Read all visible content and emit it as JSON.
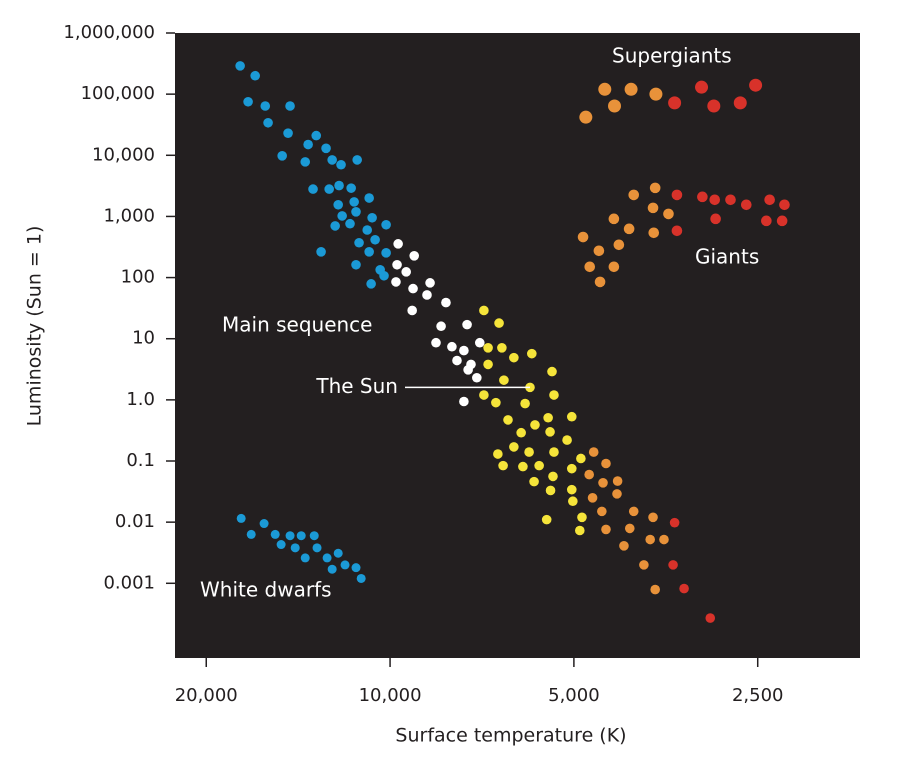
{
  "chart_data": {
    "type": "scatter",
    "x_label": "Surface temperature (K)",
    "y_label": "Luminosity (Sun = 1)",
    "x_log": true,
    "y_log": true,
    "x_reversed": true,
    "background": "#231f20",
    "xlim": [
      22500,
      1700
    ],
    "ylim": [
      6e-05,
      1000000
    ],
    "xticks": [
      {
        "value": 20000,
        "label": "20,000"
      },
      {
        "value": 10000,
        "label": "10,000"
      },
      {
        "value": 5000,
        "label": "5,000"
      },
      {
        "value": 2500,
        "label": "2,500"
      }
    ],
    "yticks": [
      {
        "value": 1000000,
        "label": "1,000,000"
      },
      {
        "value": 100000,
        "label": "100,000"
      },
      {
        "value": 10000,
        "label": "10,000"
      },
      {
        "value": 1000,
        "label": "1,000"
      },
      100,
      10,
      {
        "value": 1,
        "label": "1.0"
      },
      0.1,
      0.01,
      0.001
    ],
    "series": [
      {
        "name": "White dwarfs",
        "x": [
          17530,
          16880,
          16080,
          15420,
          15080,
          14580,
          13980,
          14300,
          13770,
          13310,
          13170,
          12680,
          12160,
          12440,
          11850,
          11370,
          11150
        ],
        "values": [
          0.0115,
          0.0063,
          0.0095,
          0.0063,
          0.0043,
          0.006,
          0.006,
          0.0038,
          0.0026,
          0.006,
          0.0038,
          0.0026,
          0.0031,
          0.0017,
          0.002,
          0.0018,
          0.0012
        ],
        "colors": [
          "#1b9ad6",
          "#1b9ad6",
          "#1b9ad6",
          "#1b9ad6",
          "#1b9ad6",
          "#1b9ad6",
          "#1b9ad6",
          "#1b9ad6",
          "#1b9ad6",
          "#1b9ad6",
          "#1b9ad6",
          "#1b9ad6",
          "#1b9ad6",
          "#1b9ad6",
          "#1b9ad6",
          "#1b9ad6",
          "#1b9ad6"
        ]
      },
      {
        "name": "Main sequence",
        "x": [
          17600,
          16630,
          17080,
          16010,
          14580,
          15840,
          14690,
          13210,
          13620,
          12730,
          15020,
          13770,
          12440,
          12030,
          11320,
          13370,
          12580,
          12120,
          11580,
          12160,
          11450,
          10820,
          11980,
          11370,
          10700,
          12300,
          11630,
          10150,
          10900,
          10580,
          11240,
          10150,
          10820,
          12970,
          11370,
          10380,
          10230,
          10740,
          9700,
          9130,
          9740,
          9410,
          9780,
          8600,
          9170,
          8700,
          8100,
          9200,
          8250,
          7480,
          8410,
          7920,
          7570,
          7770,
          7370,
          7450,
          7210,
          7570,
          7130,
          7020,
          6630,
          6910,
          6560,
          6910,
          6270,
          5860,
          6510,
          7020,
          5900,
          5430,
          6710,
          6410,
          6010,
          5390,
          5790,
          5510,
          5040,
          5470,
          5130,
          6100,
          6660,
          6270,
          5920,
          5390,
          5700,
          5040,
          4870,
          6530,
          6060,
          5810,
          5410,
          5040,
          5460,
          5020,
          4850,
          5540,
          4890,
          4640,
          4430,
          4720,
          4480,
          4240,
          4660,
          4250,
          4500,
          3990,
          4430,
          4050,
          3710,
          4140,
          3750,
          3560,
          3840,
          3680,
          3420,
          3440,
          3300,
          2990
        ],
        "values": [
          290000,
          200000,
          75000,
          64000,
          64000,
          34000,
          23000,
          21000,
          15000,
          13000,
          9800,
          7800,
          8400,
          7000,
          8400,
          2800,
          2800,
          3200,
          2900,
          1550,
          1730,
          2000,
          1020,
          1190,
          950,
          700,
          760,
          730,
          600,
          415,
          371,
          254,
          264,
          264,
          162,
          134,
          107,
          79,
          356,
          227,
          162,
          124,
          85,
          82,
          66,
          52,
          39,
          29,
          16,
          17,
          8.6,
          7.4,
          6.4,
          4.4,
          3.8,
          3.1,
          2.3,
          0.94,
          8.6,
          29,
          18,
          7.1,
          7.1,
          3.8,
          4.9,
          5.7,
          2.1,
          1.2,
          1.6,
          2.9,
          0.9,
          0.47,
          0.87,
          1.2,
          0.39,
          0.51,
          0.53,
          0.3,
          0.22,
          0.29,
          0.13,
          0.17,
          0.14,
          0.14,
          0.084,
          0.075,
          0.11,
          0.084,
          0.081,
          0.046,
          0.056,
          0.034,
          0.033,
          0.022,
          0.012,
          0.011,
          0.0073,
          0.14,
          0.091,
          0.06,
          0.044,
          0.047,
          0.025,
          0.029,
          0.015,
          0.015,
          0.0076,
          0.0079,
          0.012,
          0.0041,
          0.0052,
          0.0052,
          0.002,
          0.00079,
          0.0098,
          0.002,
          0.00082,
          0.00027
        ],
        "colors": [
          "#1b9ad6",
          "#1b9ad6",
          "#1b9ad6",
          "#1b9ad6",
          "#1b9ad6",
          "#1b9ad6",
          "#1b9ad6",
          "#1b9ad6",
          "#1b9ad6",
          "#1b9ad6",
          "#1b9ad6",
          "#1b9ad6",
          "#1b9ad6",
          "#1b9ad6",
          "#1b9ad6",
          "#1b9ad6",
          "#1b9ad6",
          "#1b9ad6",
          "#1b9ad6",
          "#1b9ad6",
          "#1b9ad6",
          "#1b9ad6",
          "#1b9ad6",
          "#1b9ad6",
          "#1b9ad6",
          "#1b9ad6",
          "#1b9ad6",
          "#1b9ad6",
          "#1b9ad6",
          "#1b9ad6",
          "#1b9ad6",
          "#1b9ad6",
          "#1b9ad6",
          "#1b9ad6",
          "#1b9ad6",
          "#1b9ad6",
          "#1b9ad6",
          "#1b9ad6",
          "#ffffff",
          "#ffffff",
          "#ffffff",
          "#ffffff",
          "#ffffff",
          "#ffffff",
          "#ffffff",
          "#ffffff",
          "#ffffff",
          "#ffffff",
          "#ffffff",
          "#ffffff",
          "#ffffff",
          "#ffffff",
          "#ffffff",
          "#ffffff",
          "#ffffff",
          "#ffffff",
          "#ffffff",
          "#ffffff",
          "#ffffff",
          "#f5e43a",
          "#f5e43a",
          "#f5e43a",
          "#f5e43a",
          "#f5e43a",
          "#f5e43a",
          "#f5e43a",
          "#f5e43a",
          "#f5e43a",
          "#f5e43a",
          "#f5e43a",
          "#f5e43a",
          "#f5e43a",
          "#f5e43a",
          "#f5e43a",
          "#f5e43a",
          "#f5e43a",
          "#f5e43a",
          "#f5e43a",
          "#f5e43a",
          "#f5e43a",
          "#f5e43a",
          "#f5e43a",
          "#f5e43a",
          "#f5e43a",
          "#f5e43a",
          "#f5e43a",
          "#f5e43a",
          "#f5e43a",
          "#f5e43a",
          "#f5e43a",
          "#f5e43a",
          "#f5e43a",
          "#f5e43a",
          "#f5e43a",
          "#f5e43a",
          "#f5e43a",
          "#f5e43a",
          "#e8923a",
          "#e8923a",
          "#e8923a",
          "#e8923a",
          "#e8923a",
          "#e8923a",
          "#e8923a",
          "#e8923a",
          "#e8923a",
          "#e8923a",
          "#e8923a",
          "#e8923a",
          "#e8923a",
          "#e8923a",
          "#e8923a",
          "#e8923a",
          "#e8923a",
          "#d8322a",
          "#d8322a",
          "#d8322a",
          "#d8322a"
        ]
      },
      {
        "name": "Giants",
        "x": [
          4830,
          4550,
          4300,
          4060,
          3990,
          3710,
          3680,
          3500,
          3700,
          4220,
          4710,
          4300,
          4530,
          3390,
          3390,
          3080,
          2940,
          2770,
          2610,
          2390,
          2260,
          2930,
          2420,
          2280
        ],
        "values": [
          460,
          274,
          914,
          627,
          2250,
          1380,
          2930,
          1100,
          540,
          344,
          150,
          150,
          85,
          2250,
          582,
          2090,
          1870,
          1870,
          1550,
          1870,
          1550,
          914,
          847,
          847
        ],
        "colors": [
          "#e8923a",
          "#e8923a",
          "#e8923a",
          "#e8923a",
          "#e8923a",
          "#e8923a",
          "#e8923a",
          "#e8923a",
          "#e8923a",
          "#e8923a",
          "#e8923a",
          "#e8923a",
          "#e8923a",
          "#d8322a",
          "#d8322a",
          "#d8322a",
          "#d8322a",
          "#d8322a",
          "#d8322a",
          "#d8322a",
          "#d8322a",
          "#d8322a",
          "#d8322a",
          "#d8322a"
        ]
      },
      {
        "name": "Supergiants",
        "x": [
          4780,
          4290,
          4450,
          4030,
          3670,
          3420,
          3090,
          2950,
          2670,
          2520
        ],
        "values": [
          42000,
          64000,
          120000,
          120000,
          100000,
          72000,
          130000,
          64000,
          72000,
          140000
        ],
        "colors": [
          "#e8923a",
          "#e8923a",
          "#e8923a",
          "#e8923a",
          "#e8923a",
          "#d8322a",
          "#d8322a",
          "#d8322a",
          "#d8322a",
          "#d8322a"
        ]
      }
    ],
    "annotations": [
      {
        "text": "The Sun",
        "x": 5900,
        "y": 1.6
      }
    ]
  }
}
